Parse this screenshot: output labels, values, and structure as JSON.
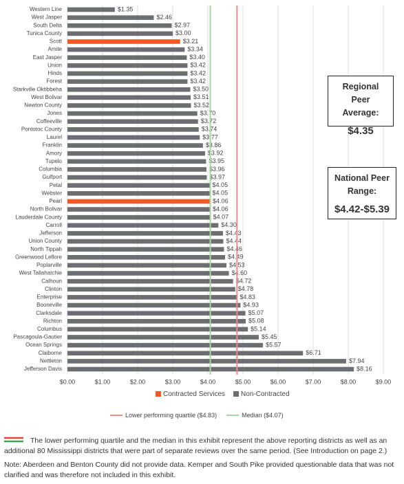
{
  "chart_data": {
    "type": "hbar",
    "categories": [
      "Western Line",
      "West Jasper",
      "South Delta",
      "Tunica County",
      "Scott",
      "Amite",
      "East Jasper",
      "Union",
      "Hinds",
      "Forest",
      "Starkville Oktibbeha",
      "West Bolivar",
      "Newton County",
      "Jones",
      "Coffeeville",
      "Pontotoc County",
      "Laurel",
      "Franklin",
      "Amory",
      "Tupelo",
      "Columbia",
      "Gulfport",
      "Petal",
      "Webster",
      "Pearl",
      "North Bolivar",
      "Lauderdale County",
      "Carroll",
      "Jefferson",
      "Union County",
      "North Tippah",
      "Greenwood Leflore",
      "Poplarville",
      "West Tallahatchie",
      "Calhoun",
      "Clinton",
      "Enterprise",
      "Booneville",
      "Clarksdale",
      "Richton",
      "Columbus",
      "Pascagoula-Gautier",
      "Ocean Springs",
      "Claiborne",
      "Nettleton",
      "Jefferson Davis"
    ],
    "series": [
      {
        "name": "Contracted Services",
        "color": "#f15a24",
        "values": [
          null,
          null,
          null,
          null,
          3.21,
          null,
          null,
          null,
          null,
          null,
          null,
          null,
          null,
          null,
          null,
          null,
          null,
          null,
          null,
          null,
          null,
          null,
          null,
          null,
          4.06,
          null,
          null,
          null,
          null,
          null,
          null,
          null,
          null,
          null,
          null,
          null,
          null,
          null,
          null,
          null,
          null,
          null,
          null,
          null,
          null,
          null
        ],
        "value_labels": [
          null,
          null,
          null,
          null,
          "$3.21",
          null,
          null,
          null,
          null,
          null,
          null,
          null,
          null,
          null,
          null,
          null,
          null,
          null,
          null,
          null,
          null,
          null,
          null,
          null,
          "$4.06",
          null,
          null,
          null,
          null,
          null,
          null,
          null,
          null,
          null,
          null,
          null,
          null,
          null,
          null,
          null,
          null,
          null,
          null,
          null,
          null,
          null
        ]
      },
      {
        "name": "Non-Contracted",
        "color": "#6d6e71",
        "values": [
          1.35,
          2.46,
          2.97,
          3.0,
          null,
          3.34,
          3.4,
          3.42,
          3.42,
          3.42,
          3.5,
          3.51,
          3.52,
          3.7,
          3.72,
          3.74,
          3.77,
          3.86,
          3.92,
          3.95,
          3.96,
          3.97,
          4.05,
          4.05,
          null,
          4.06,
          4.07,
          4.3,
          4.43,
          4.44,
          4.46,
          4.49,
          4.53,
          4.6,
          4.72,
          4.78,
          4.83,
          4.93,
          5.07,
          5.08,
          5.14,
          5.45,
          5.57,
          6.71,
          7.94,
          8.16
        ],
        "value_labels": [
          "$1.35",
          "$2.46",
          "$2.97",
          "$3.00",
          null,
          "$3.34",
          "$3.40",
          "$3.42",
          "$3.42",
          "$3.42",
          "$3.50",
          "$3.51",
          "$3.52",
          "$3.70",
          "$3.72",
          "$3.74",
          "$3.77",
          "$3.86",
          "$3.92",
          "$3.95",
          "$3.96",
          "$3.97",
          "$4.05",
          "$4.05",
          null,
          "$4.06",
          "$4.07",
          "$4.30",
          "$4.43",
          "$4.44",
          "$4.46",
          "$4.49",
          "$4.53",
          "$4.60",
          "$4.72",
          "$4.78",
          "$4.83",
          "$4.93",
          "$5.07",
          "$5.08",
          "$5.14",
          "$5.45",
          "$5.57",
          "$6.71",
          "$7.94",
          "$8.16"
        ]
      }
    ],
    "xlim": [
      0,
      9
    ],
    "xticks": [
      {
        "value": 0,
        "label": "$0.00"
      },
      {
        "value": 1,
        "label": "$1.00"
      },
      {
        "value": 2,
        "label": "$2.00"
      },
      {
        "value": 3,
        "label": "$3.00"
      },
      {
        "value": 4,
        "label": "$4.00"
      },
      {
        "value": 5,
        "label": "$5.00"
      },
      {
        "value": 6,
        "label": "$6.00"
      },
      {
        "value": 7,
        "label": "$7.00"
      },
      {
        "value": 8,
        "label": "$8.00"
      },
      {
        "value": 9,
        "label": "$9.00"
      }
    ],
    "grid": true,
    "reference_lines": [
      {
        "name": "Lower performing quartile ($4.83)",
        "value": 4.83,
        "color": "#f08a8a"
      },
      {
        "name": "Median ($4.07)",
        "value": 4.07,
        "color": "#a8d5a2"
      }
    ],
    "callouts": [
      {
        "label": "Regional Peer Average:",
        "text": "$4.35"
      },
      {
        "label": "National Peer Range:",
        "text": "$4.42-$5.39"
      }
    ]
  },
  "notes": [
    "The lower performing quartile and the median in this exhibit represent the above reporting districts as well as an additional 80 Mississippi districts that were part of separate reviews over the same period. (See Introduction on page 2.)",
    "Note: Aberdeen and Benton County did not provide data. Kemper and South Pike provided questionable data that was not clarified and was therefore not included in this exhibit."
  ]
}
